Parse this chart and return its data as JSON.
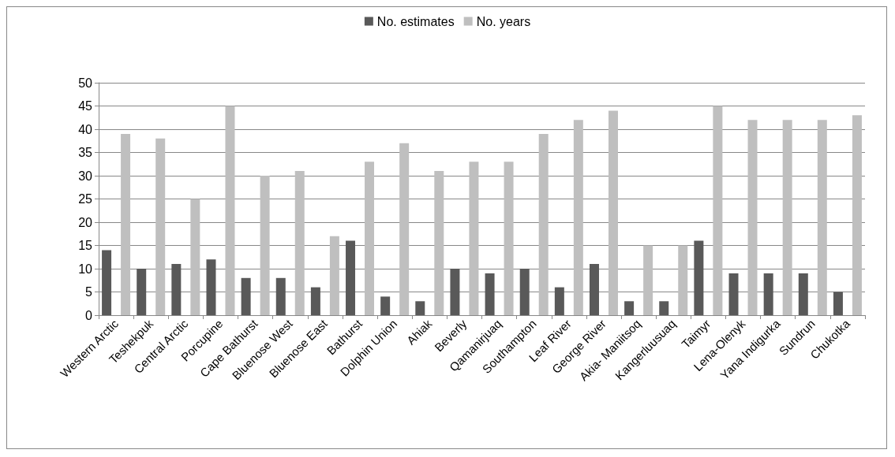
{
  "chart_data": {
    "type": "bar",
    "categories": [
      "Western Arctic",
      "Teshekpuk",
      "Central Arctic",
      "Porcupine",
      "Cape Bathurst",
      "Bluenose West",
      "Bluenose East",
      "Bathurst",
      "Dolphin Union",
      "Ahiak",
      "Beverly",
      "Qamanirjuaq",
      "Southampton",
      "Leaf River",
      "George River",
      "Akia- Maniitsoq",
      "Kangerluusuaq",
      "Taimyr",
      "Lena-Olenyk",
      "Yana Indigurka",
      "Sundrun",
      "Chukotka"
    ],
    "series": [
      {
        "name": "No. estimates",
        "color": "#595959",
        "values": [
          14,
          10,
          11,
          12,
          8,
          8,
          6,
          16,
          4,
          3,
          10,
          9,
          10,
          6,
          11,
          3,
          3,
          16,
          9,
          9,
          9,
          5
        ]
      },
      {
        "name": "No. years",
        "color": "#bfbfbf",
        "values": [
          39,
          38,
          25,
          45,
          30,
          31,
          17,
          33,
          37,
          31,
          33,
          33,
          39,
          42,
          44,
          15,
          15,
          45,
          42,
          42,
          42,
          43
        ]
      }
    ],
    "ylim": [
      0,
      50
    ],
    "yticks": [
      0,
      5,
      10,
      15,
      20,
      25,
      30,
      35,
      40,
      45,
      50
    ],
    "grid": "y",
    "legend": "top"
  }
}
